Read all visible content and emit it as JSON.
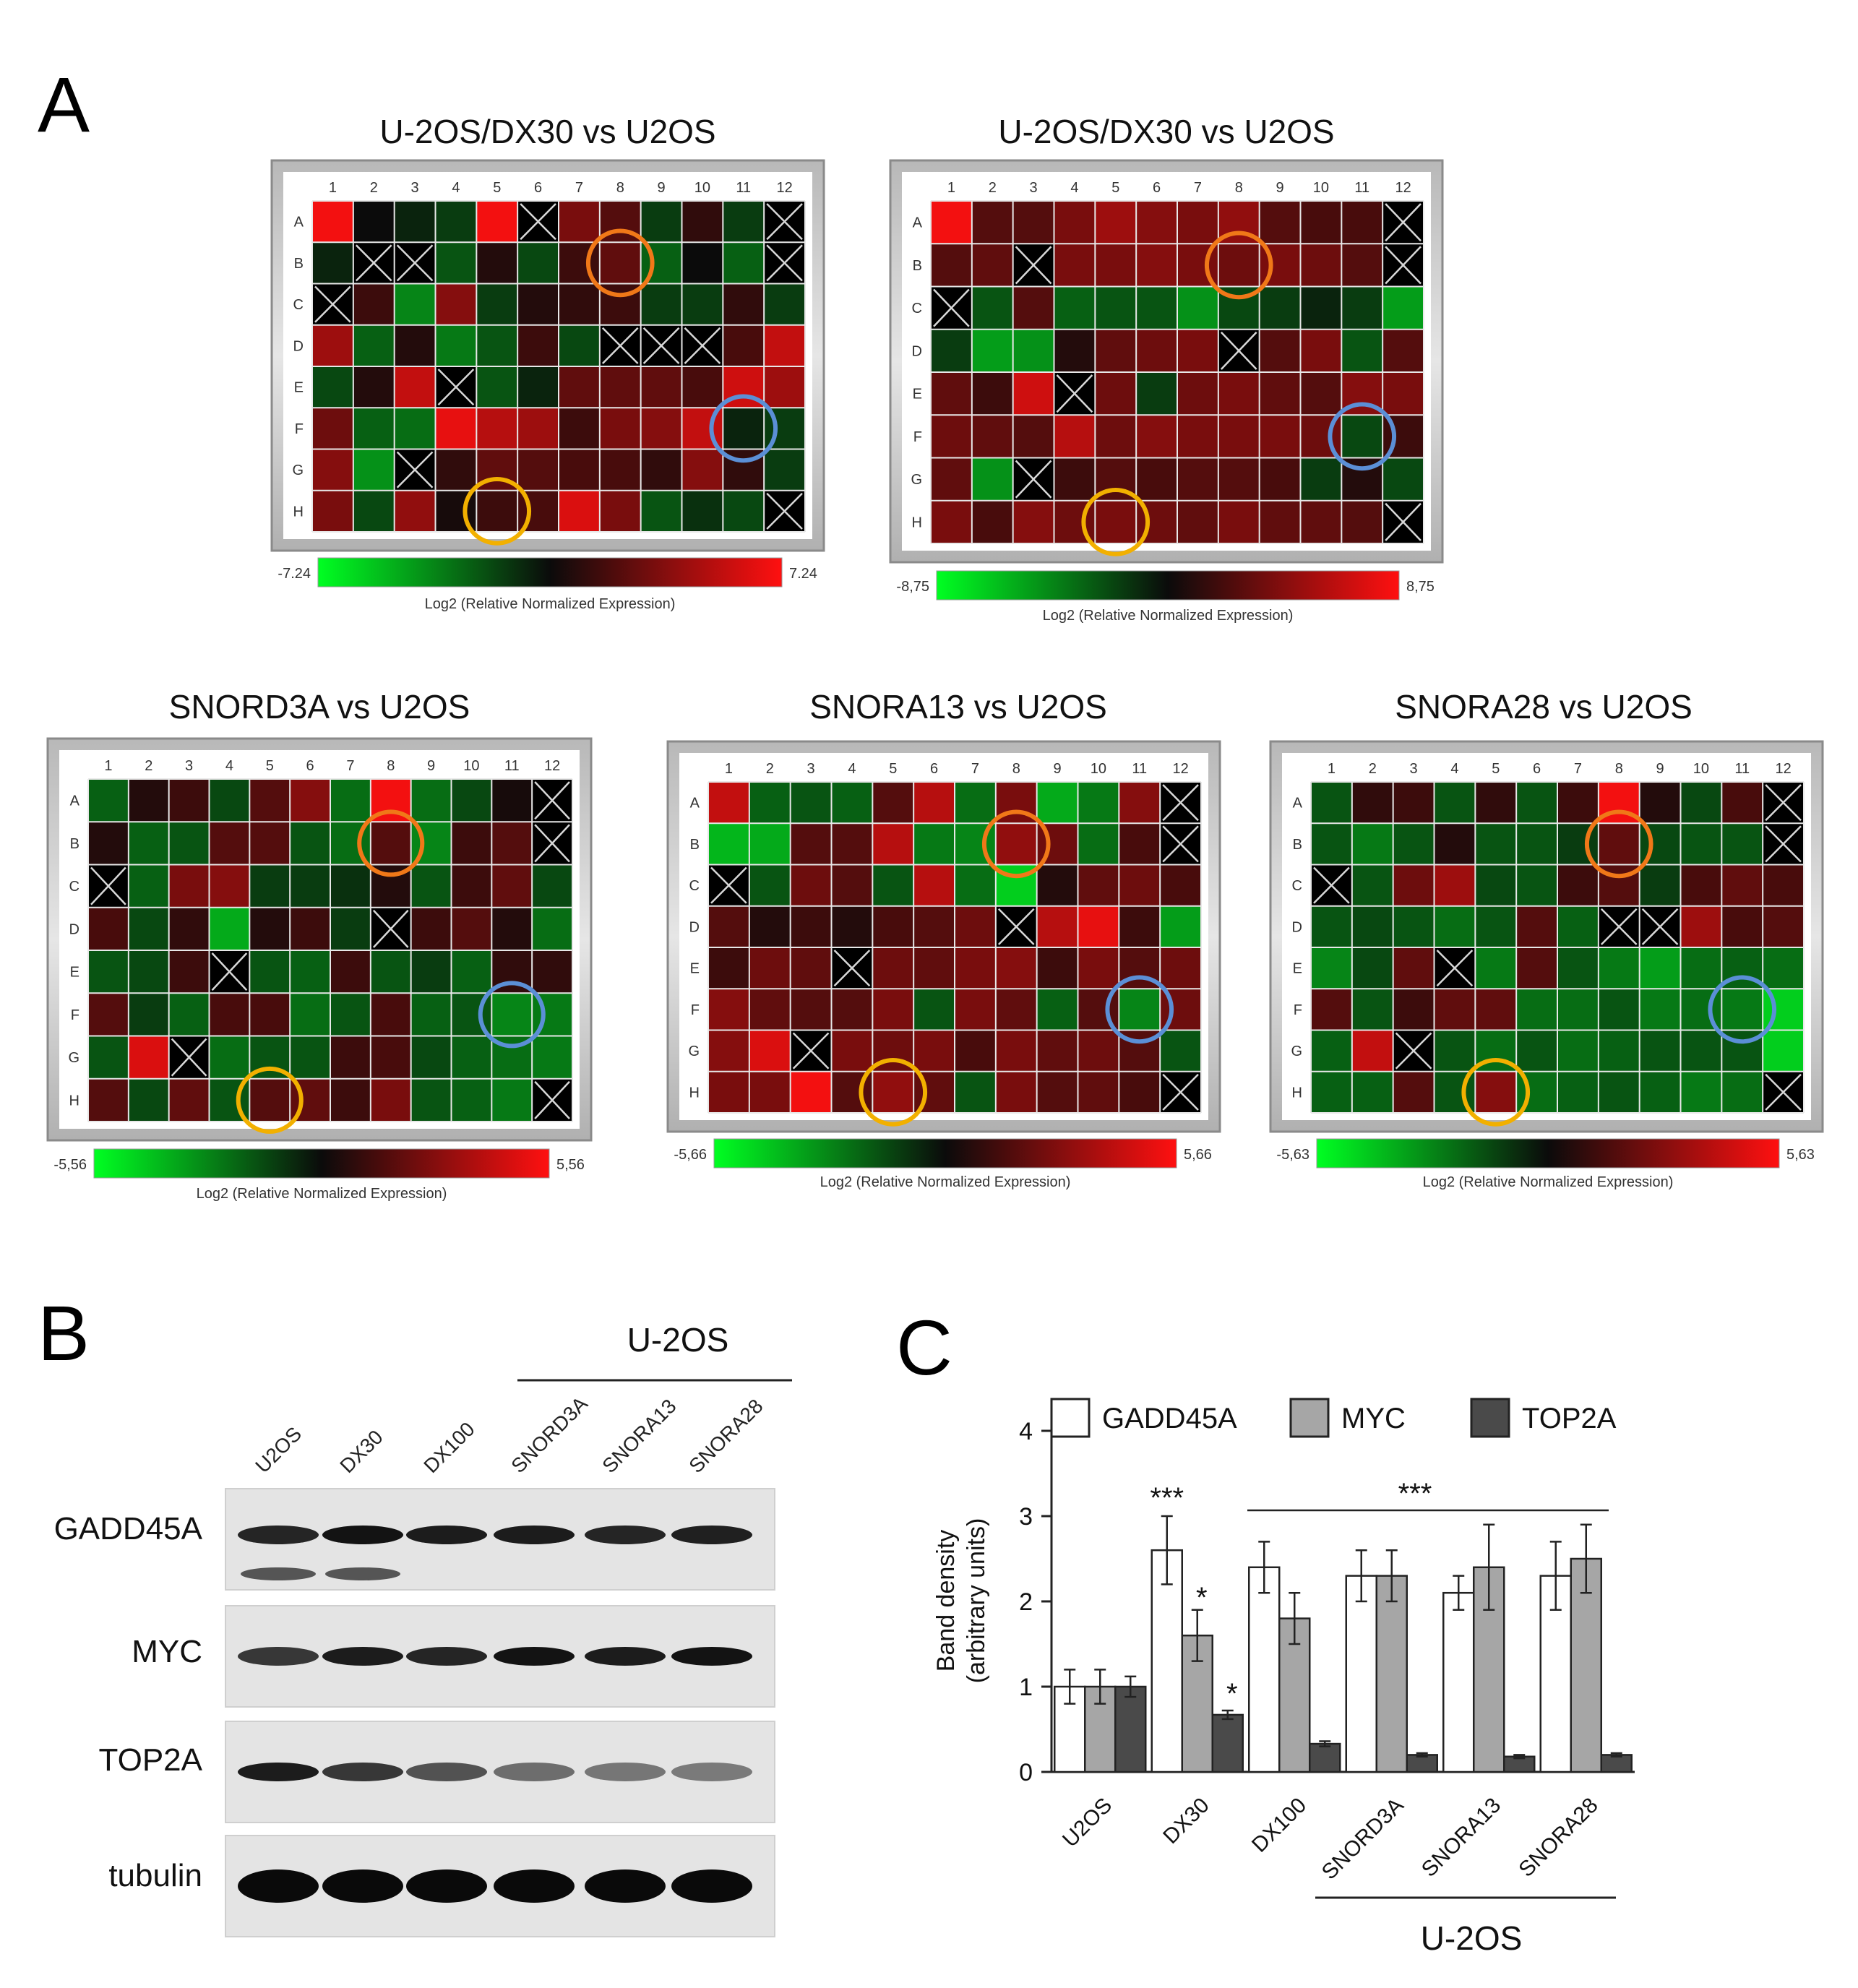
{
  "panel_letters": {
    "a": "A",
    "b": "B",
    "c": "C"
  },
  "colors": {
    "low": "#00ff22",
    "mid": "#0b0b0b",
    "high": "#ff1010",
    "marker_orange": "#f07818",
    "marker_blue": "#5b8fd6",
    "marker_yellow": "#f2b000",
    "bar_gadd45a": "#ffffff",
    "bar_myc": "#a6a6a6",
    "bar_top2a": "#4a4a4a"
  },
  "heatmaps": [
    {
      "title": "U-2OS/DX30 vs U2OS",
      "scale_min": "-7.24",
      "scale_max": "7.24",
      "cols": [
        "1",
        "2",
        "3",
        "4",
        "5",
        "6",
        "7",
        "8",
        "9",
        "10",
        "11",
        "12"
      ],
      "rows": [
        "A",
        "B",
        "C",
        "D",
        "E",
        "F",
        "G",
        "H"
      ],
      "scale_label": "Log2 (Relative Normalized Expression)",
      "values": [
        [
          0.95,
          0.0,
          -0.1,
          -0.2,
          0.95,
          null,
          0.45,
          0.3,
          -0.2,
          0.15,
          -0.2,
          null
        ],
        [
          -0.1,
          null,
          null,
          -0.3,
          0.1,
          -0.25,
          0.2,
          0.35,
          -0.35,
          0.0,
          -0.35,
          null
        ],
        [
          null,
          0.2,
          -0.5,
          0.5,
          -0.2,
          0.1,
          0.15,
          0.2,
          -0.2,
          -0.2,
          0.15,
          -0.2
        ],
        [
          0.6,
          -0.35,
          0.1,
          -0.45,
          -0.3,
          0.2,
          -0.25,
          null,
          null,
          null,
          0.25,
          0.75
        ],
        [
          -0.25,
          0.1,
          0.75,
          null,
          -0.3,
          -0.1,
          0.35,
          0.35,
          0.35,
          0.25,
          0.8,
          0.6
        ],
        [
          0.4,
          -0.35,
          -0.4,
          0.9,
          0.7,
          0.6,
          0.2,
          0.45,
          0.5,
          0.75,
          -0.1,
          -0.2
        ],
        [
          0.5,
          -0.55,
          null,
          0.15,
          0.35,
          0.3,
          0.25,
          0.25,
          0.15,
          0.5,
          0.15,
          -0.2
        ],
        [
          0.45,
          -0.25,
          0.55,
          0.05,
          0.2,
          0.25,
          0.85,
          0.45,
          -0.3,
          -0.15,
          -0.25,
          null
        ]
      ],
      "circles": [
        {
          "row": 1,
          "col": 7,
          "color": "orange"
        },
        {
          "row": 5,
          "col": 10,
          "color": "blue"
        },
        {
          "row": 7,
          "col": 4,
          "color": "yellow"
        }
      ]
    },
    {
      "title": "U-2OS/DX30 vs U2OS",
      "scale_min": "-8,75",
      "scale_max": "8,75",
      "cols": [
        "1",
        "2",
        "3",
        "4",
        "5",
        "6",
        "7",
        "8",
        "9",
        "10",
        "11",
        "12"
      ],
      "rows": [
        "A",
        "B",
        "C",
        "D",
        "E",
        "F",
        "G",
        "H"
      ],
      "scale_label": "Log2 (Relative Normalized Expression)",
      "values": [
        [
          0.95,
          0.3,
          0.3,
          0.45,
          0.6,
          0.5,
          0.45,
          0.55,
          0.3,
          0.25,
          0.25,
          null
        ],
        [
          0.3,
          0.35,
          null,
          0.45,
          0.45,
          0.5,
          0.45,
          0.4,
          0.45,
          0.4,
          0.3,
          null
        ],
        [
          null,
          -0.3,
          0.3,
          -0.35,
          -0.3,
          -0.3,
          -0.55,
          -0.25,
          -0.2,
          -0.1,
          -0.2,
          -0.6
        ],
        [
          -0.2,
          -0.6,
          -0.55,
          0.1,
          0.35,
          0.4,
          0.45,
          null,
          0.3,
          0.45,
          -0.3,
          0.3
        ],
        [
          0.35,
          0.2,
          0.8,
          null,
          0.4,
          -0.2,
          0.4,
          0.45,
          0.35,
          0.3,
          0.5,
          0.45
        ],
        [
          0.4,
          0.35,
          0.3,
          0.7,
          0.4,
          0.5,
          0.45,
          0.45,
          0.45,
          0.4,
          -0.25,
          0.2
        ],
        [
          0.35,
          -0.55,
          null,
          0.2,
          0.3,
          0.25,
          0.3,
          0.3,
          0.25,
          -0.2,
          0.1,
          -0.25
        ],
        [
          0.45,
          0.25,
          0.5,
          0.4,
          0.45,
          0.4,
          0.35,
          0.45,
          0.35,
          0.35,
          0.3,
          null
        ]
      ],
      "circles": [
        {
          "row": 1,
          "col": 7,
          "color": "orange"
        },
        {
          "row": 5,
          "col": 10,
          "color": "blue"
        },
        {
          "row": 7,
          "col": 4,
          "color": "yellow"
        }
      ]
    },
    {
      "title": "SNORD3A vs U2OS",
      "scale_min": "-5,56",
      "scale_max": "5,56",
      "cols": [
        "1",
        "2",
        "3",
        "4",
        "5",
        "6",
        "7",
        "8",
        "9",
        "10",
        "11",
        "12"
      ],
      "rows": [
        "A",
        "B",
        "C",
        "D",
        "E",
        "F",
        "G",
        "H"
      ],
      "scale_label": "Log2 (Relative Normalized Expression)",
      "values": [
        [
          -0.35,
          0.1,
          0.2,
          -0.25,
          0.3,
          0.5,
          -0.4,
          0.95,
          -0.4,
          -0.25,
          0.05,
          null
        ],
        [
          0.1,
          -0.35,
          -0.3,
          0.3,
          0.3,
          -0.3,
          -0.4,
          0.3,
          -0.5,
          0.2,
          0.3,
          null
        ],
        [
          null,
          -0.35,
          0.45,
          0.5,
          -0.2,
          -0.2,
          -0.15,
          0.1,
          -0.3,
          0.2,
          0.35,
          -0.25
        ],
        [
          0.25,
          -0.25,
          0.15,
          -0.65,
          0.1,
          0.2,
          -0.2,
          null,
          0.2,
          0.3,
          0.1,
          -0.4
        ],
        [
          -0.3,
          -0.25,
          0.2,
          null,
          -0.3,
          -0.35,
          0.2,
          -0.3,
          -0.2,
          -0.35,
          0.15,
          0.15
        ],
        [
          0.3,
          -0.2,
          -0.35,
          0.25,
          0.25,
          -0.4,
          -0.3,
          0.25,
          -0.35,
          -0.3,
          -0.5,
          -0.45
        ],
        [
          -0.3,
          0.85,
          null,
          -0.4,
          -0.3,
          -0.3,
          0.2,
          0.25,
          -0.25,
          -0.35,
          -0.4,
          -0.45
        ],
        [
          0.3,
          -0.25,
          0.35,
          -0.3,
          0.3,
          0.35,
          0.2,
          0.45,
          -0.3,
          -0.35,
          -0.45,
          null
        ]
      ],
      "circles": [
        {
          "row": 1,
          "col": 7,
          "color": "orange"
        },
        {
          "row": 5,
          "col": 10,
          "color": "blue"
        },
        {
          "row": 7,
          "col": 4,
          "color": "yellow"
        }
      ]
    },
    {
      "title": "SNORA13 vs U2OS",
      "scale_min": "-5,66",
      "scale_max": "5,66",
      "cols": [
        "1",
        "2",
        "3",
        "4",
        "5",
        "6",
        "7",
        "8",
        "9",
        "10",
        "11",
        "12"
      ],
      "rows": [
        "A",
        "B",
        "C",
        "D",
        "E",
        "F",
        "G",
        "H"
      ],
      "scale_label": "Log2 (Relative Normalized Expression)",
      "values": [
        [
          0.75,
          -0.35,
          -0.3,
          -0.35,
          0.3,
          0.7,
          -0.4,
          0.45,
          -0.65,
          -0.45,
          0.5,
          null
        ],
        [
          -0.7,
          -0.65,
          0.3,
          0.3,
          0.7,
          -0.45,
          -0.5,
          0.55,
          0.4,
          -0.4,
          0.25,
          null
        ],
        [
          null,
          -0.3,
          0.4,
          0.3,
          -0.3,
          0.7,
          -0.4,
          -0.8,
          0.1,
          0.35,
          0.4,
          0.25
        ],
        [
          0.3,
          0.1,
          0.2,
          0.1,
          0.25,
          0.3,
          0.4,
          null,
          0.7,
          0.9,
          0.2,
          -0.6
        ],
        [
          0.2,
          0.4,
          0.35,
          null,
          0.4,
          0.35,
          0.45,
          0.5,
          0.2,
          0.45,
          0.3,
          0.4
        ],
        [
          0.5,
          0.35,
          0.3,
          0.3,
          0.45,
          -0.3,
          0.45,
          0.35,
          -0.35,
          0.3,
          -0.5,
          0.4
        ],
        [
          0.5,
          0.85,
          null,
          0.45,
          0.4,
          0.45,
          0.25,
          0.45,
          0.35,
          0.4,
          0.3,
          -0.3
        ],
        [
          0.45,
          0.45,
          0.95,
          0.3,
          0.55,
          0.35,
          -0.3,
          0.45,
          0.3,
          0.35,
          0.25,
          null
        ]
      ],
      "circles": [
        {
          "row": 1,
          "col": 7,
          "color": "orange"
        },
        {
          "row": 5,
          "col": 10,
          "color": "blue"
        },
        {
          "row": 7,
          "col": 4,
          "color": "yellow"
        }
      ]
    },
    {
      "title": "SNORA28 vs U2OS",
      "scale_min": "-5,63",
      "scale_max": "5,63",
      "cols": [
        "1",
        "2",
        "3",
        "4",
        "5",
        "6",
        "7",
        "8",
        "9",
        "10",
        "11",
        "12"
      ],
      "rows": [
        "A",
        "B",
        "C",
        "D",
        "E",
        "F",
        "G",
        "H"
      ],
      "scale_label": "Log2 (Relative Normalized Expression)",
      "values": [
        [
          -0.3,
          0.15,
          0.2,
          -0.3,
          0.15,
          -0.3,
          0.2,
          0.95,
          0.1,
          -0.25,
          0.25,
          null
        ],
        [
          -0.3,
          -0.45,
          -0.3,
          0.1,
          -0.3,
          -0.3,
          -0.2,
          0.35,
          -0.25,
          -0.3,
          -0.3,
          null
        ],
        [
          null,
          -0.3,
          0.4,
          0.6,
          -0.25,
          -0.3,
          0.2,
          0.3,
          -0.2,
          0.25,
          0.35,
          0.25
        ],
        [
          -0.3,
          -0.25,
          -0.3,
          -0.4,
          -0.3,
          0.3,
          -0.35,
          null,
          null,
          0.6,
          0.25,
          0.3
        ],
        [
          -0.5,
          -0.25,
          0.35,
          null,
          -0.45,
          0.3,
          -0.3,
          -0.45,
          -0.6,
          -0.4,
          -0.35,
          -0.4
        ],
        [
          0.3,
          -0.3,
          0.2,
          0.35,
          0.35,
          -0.4,
          -0.4,
          -0.3,
          -0.45,
          -0.4,
          -0.45,
          -0.8
        ],
        [
          -0.35,
          0.75,
          null,
          -0.3,
          -0.4,
          -0.3,
          -0.4,
          -0.35,
          -0.3,
          -0.3,
          -0.3,
          -0.8
        ],
        [
          -0.35,
          -0.35,
          0.3,
          -0.3,
          0.5,
          -0.4,
          -0.35,
          -0.3,
          -0.35,
          -0.45,
          -0.4,
          null
        ]
      ],
      "circles": [
        {
          "row": 1,
          "col": 7,
          "color": "orange"
        },
        {
          "row": 5,
          "col": 10,
          "color": "blue"
        },
        {
          "row": 7,
          "col": 4,
          "color": "yellow"
        }
      ]
    }
  ],
  "western_blot": {
    "group_label": "U-2OS",
    "lanes": [
      "U2OS",
      "DX30",
      "DX100",
      "SNORD3A",
      "SNORA13",
      "SNORA28"
    ],
    "proteins": [
      {
        "name": "GADD45A",
        "intensity": [
          0.85,
          0.95,
          0.9,
          0.9,
          0.85,
          0.88
        ]
      },
      {
        "name": "MYC",
        "intensity": [
          0.75,
          0.9,
          0.85,
          0.95,
          0.9,
          0.95
        ]
      },
      {
        "name": "TOP2A",
        "intensity": [
          0.9,
          0.75,
          0.6,
          0.45,
          0.4,
          0.38
        ]
      },
      {
        "name": "tubulin",
        "intensity": [
          1.0,
          1.0,
          1.0,
          1.0,
          1.0,
          1.0
        ]
      }
    ]
  },
  "chart_data": {
    "type": "bar",
    "title": "",
    "ylabel": "Band density (arbitrary units)",
    "ylabel_line1": "Band density",
    "ylabel_line2": "(arbitrary units)",
    "xlabel": "",
    "group_label": "U-2OS",
    "ylim": [
      0,
      4
    ],
    "yticks": [
      "0",
      "1",
      "2",
      "3",
      "4"
    ],
    "categories": [
      "U2OS",
      "DX30",
      "DX100",
      "SNORD3A",
      "SNORA13",
      "SNORA28"
    ],
    "series": [
      {
        "name": "GADD45A",
        "values": [
          1.0,
          2.6,
          2.4,
          2.3,
          2.1,
          2.3
        ],
        "errors": [
          0.2,
          0.4,
          0.3,
          0.3,
          0.2,
          0.4
        ]
      },
      {
        "name": "MYC",
        "values": [
          1.0,
          1.6,
          1.8,
          2.3,
          2.4,
          2.5
        ],
        "errors": [
          0.2,
          0.3,
          0.3,
          0.3,
          0.5,
          0.4
        ]
      },
      {
        "name": "TOP2A",
        "values": [
          1.0,
          0.67,
          0.33,
          0.2,
          0.18,
          0.2
        ],
        "errors": [
          0.12,
          0.05,
          0.03,
          0.02,
          0.02,
          0.02
        ]
      }
    ],
    "significance": {
      "dx30_gadd45a": "***",
      "dx30_myc": "*",
      "dx30_top2a": "*",
      "group": "***"
    },
    "legend": "top"
  }
}
